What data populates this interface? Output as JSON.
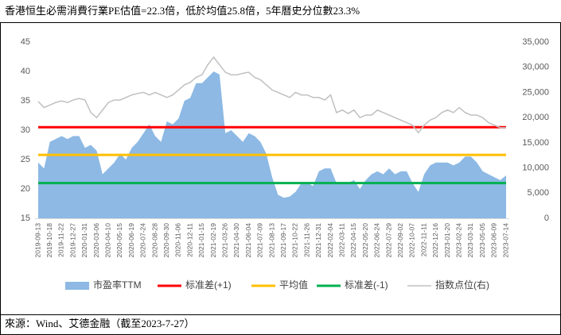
{
  "chart_data": {
    "type": "combo",
    "title": "香港恒生必需消費行業PE估值=22.3倍，低於均值25.8倍，5年曆史分位數23.3%",
    "source": "來源：Wind、艾德金融（截至2023-7-27）",
    "categories": [
      "2019-09-13",
      null,
      "2019-10-18",
      null,
      "2019-11-22",
      null,
      "2019-12-27",
      null,
      "2020-01-31",
      null,
      "2020-03-06",
      null,
      "2020-04-10",
      null,
      "2020-05-15",
      null,
      "2020-06-19",
      null,
      "2020-07-24",
      null,
      "2020-08-28",
      null,
      "2020-09-30",
      null,
      "2020-11-06",
      null,
      "2020-12-11",
      null,
      "2021-01-15",
      null,
      "2021-02-19",
      null,
      "2021-03-26",
      null,
      "2021-04-30",
      null,
      "2021-06-04",
      null,
      "2021-07-09",
      null,
      "2021-08-13",
      null,
      "2021-09-17",
      null,
      "2021-10-22",
      null,
      "2021-11-26",
      null,
      "2021-12-31",
      null,
      "2022-02-04",
      null,
      "2022-03-11",
      null,
      "2022-04-15",
      null,
      "2022-05-20",
      null,
      "2022-06-24",
      null,
      "2022-07-29",
      null,
      "2022-09-02",
      null,
      "2022-10-07",
      null,
      "2022-11-11",
      null,
      "2022-12-16",
      null,
      "2023-01-20",
      null,
      "2023-02-24",
      null,
      "2023-03-31",
      null,
      "2023-05-05",
      null,
      "2023-06-09",
      null,
      "2023-07-14"
    ],
    "series": [
      {
        "name": "市盈率TTM",
        "type": "area",
        "color": "#8db9e4",
        "values": [
          24.5,
          23.5,
          28,
          28.5,
          29,
          28.5,
          29,
          29,
          27,
          27.5,
          26.5,
          22.5,
          23.5,
          24.5,
          26,
          25,
          27,
          28,
          29.5,
          31,
          29,
          28,
          31.5,
          31,
          32,
          35,
          35.5,
          38,
          38,
          39,
          40,
          39.5,
          29.5,
          30,
          29,
          28,
          29.5,
          29,
          28,
          26,
          22,
          19,
          18.5,
          18.7,
          19.5,
          21,
          21,
          20.5,
          23,
          23.5,
          23.5,
          21,
          21,
          21,
          21.5,
          20,
          21.5,
          22.5,
          23,
          22.5,
          23.5,
          22.5,
          23,
          23,
          21,
          19.5,
          22.5,
          24,
          24.5,
          24.5,
          24.5,
          24,
          24.5,
          25.5,
          25.5,
          24.5,
          23,
          22.5,
          22,
          21.5,
          22.3
        ]
      },
      {
        "name": "标准差(+1)",
        "type": "hline",
        "color": "#ff0000",
        "value": 30.5
      },
      {
        "name": "平均值",
        "type": "hline",
        "color": "#ffc000",
        "value": 25.8
      },
      {
        "name": "标准差(-1)",
        "type": "hline",
        "color": "#00b050",
        "value": 21
      },
      {
        "name": "指数点位(右)",
        "type": "line",
        "axis": "y2",
        "color": "#c0c0c0",
        "values": [
          23200,
          22000,
          22500,
          23000,
          23300,
          23000,
          23500,
          23800,
          23500,
          21000,
          20000,
          21500,
          23000,
          23500,
          23500,
          24000,
          24500,
          24800,
          25000,
          24500,
          25000,
          24500,
          24000,
          24500,
          25500,
          26500,
          27000,
          28000,
          28500,
          30500,
          32000,
          30500,
          29000,
          28500,
          28500,
          28800,
          29000,
          28000,
          27500,
          26500,
          25500,
          25000,
          24500,
          24000,
          25000,
          24500,
          24500,
          24000,
          24000,
          23500,
          24500,
          21000,
          21500,
          20800,
          21500,
          20000,
          20500,
          20500,
          21500,
          21000,
          20500,
          20000,
          19500,
          19000,
          18500,
          17000,
          18500,
          19500,
          20000,
          21000,
          21500,
          21000,
          22000,
          21000,
          20500,
          20500,
          20000,
          19000,
          18500,
          18000,
          18000
        ]
      }
    ],
    "ylim": [
      15,
      45
    ],
    "yticks": [
      15,
      20,
      25,
      30,
      35,
      40,
      45
    ],
    "y2lim": [
      0,
      35000
    ],
    "y2ticks": [
      0,
      {
        "value": 5000,
        "label": "5,000"
      },
      {
        "value": 10000,
        "label": "10,000"
      },
      {
        "value": 15000,
        "label": "15,000"
      },
      {
        "value": 20000,
        "label": "20,000"
      },
      {
        "value": 25000,
        "label": "25,000"
      },
      {
        "value": 30000,
        "label": "30,000"
      },
      {
        "value": 35000,
        "label": "35,000"
      }
    ],
    "grid": false,
    "legend": "bottom"
  }
}
